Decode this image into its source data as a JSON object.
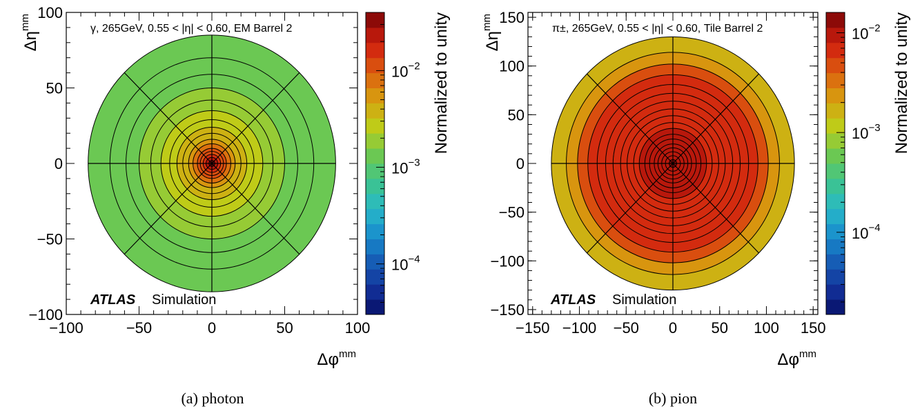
{
  "chart_data": [
    {
      "type": "heatmap",
      "subtype": "polar-binned",
      "panel_caption": "(a) photon",
      "annotation": "γ, 265GeV, 0.55 < |η| < 0.60, EM Barrel 2",
      "atlas_label": "ATLAS",
      "atlas_sublabel": "Simulation",
      "xlabel": "Δφ",
      "xlabel_sup": "mm",
      "ylabel": "Δη",
      "ylabel_sup": "mm",
      "xlim": [
        -100,
        100
      ],
      "ylim": [
        -100,
        100
      ],
      "xticks": [
        -100,
        -50,
        0,
        50,
        100
      ],
      "yticks": [
        -100,
        -50,
        0,
        50,
        100
      ],
      "xtick_labels": [
        "−100",
        "−50",
        "0",
        "50",
        "100"
      ],
      "ytick_labels": [
        "−100",
        "−50",
        "0",
        "50",
        "100"
      ],
      "colorbar": {
        "label": "Normalized to unity",
        "scale": "log",
        "range": [
          3e-05,
          0.04
        ],
        "tick_values": [
          0.0001,
          0.001,
          0.01
        ],
        "tick_labels": [
          "10",
          "10",
          "10"
        ],
        "tick_exponents": [
          "−4",
          "−3",
          "−2"
        ]
      },
      "radial_edges_mm": [
        0,
        2,
        4,
        6,
        8,
        10,
        13,
        16,
        20,
        24,
        29,
        35,
        42,
        50,
        59,
        70,
        85
      ],
      "angular_bins": 8,
      "values": [
        0.028,
        0.022,
        0.017,
        0.013,
        0.01,
        0.0075,
        0.0058,
        0.0046,
        0.0036,
        0.0029,
        0.0024,
        0.002,
        0.0017,
        0.0015,
        0.0013,
        0.0011
      ]
    },
    {
      "type": "heatmap",
      "subtype": "polar-binned",
      "panel_caption": "(b) pion",
      "annotation": "π±, 265GeV, 0.55 < |η| < 0.60, Tile Barrel 2",
      "atlas_label": "ATLAS",
      "atlas_sublabel": "Simulation",
      "xlabel": "Δφ",
      "xlabel_sup": "mm",
      "ylabel": "Δη",
      "ylabel_sup": "mm",
      "xlim": [
        -155,
        155
      ],
      "ylim": [
        -155,
        155
      ],
      "xticks": [
        -150,
        -100,
        -50,
        0,
        50,
        100,
        150
      ],
      "yticks": [
        -150,
        -100,
        -50,
        0,
        50,
        100,
        150
      ],
      "xtick_labels": [
        "−150",
        "−100",
        "−50",
        "0",
        "50",
        "100",
        "150"
      ],
      "ytick_labels": [
        "−150",
        "−100",
        "−50",
        "0",
        "50",
        "100",
        "150"
      ],
      "colorbar": {
        "label": "Normalized to unity",
        "scale": "log",
        "range": [
          1.5e-05,
          0.016
        ],
        "tick_values": [
          0.0001,
          0.001,
          0.01
        ],
        "tick_labels": [
          "10",
          "10",
          "10"
        ],
        "tick_exponents": [
          "−4",
          "−3",
          "−2"
        ]
      },
      "radial_edges_mm": [
        0,
        4,
        8,
        12,
        16,
        20,
        25,
        30,
        36,
        42,
        49,
        56,
        64,
        72,
        81,
        91,
        102,
        114,
        130
      ],
      "angular_bins": 8,
      "values": [
        0.012,
        0.011,
        0.01,
        0.0095,
        0.009,
        0.0085,
        0.0082,
        0.008,
        0.0078,
        0.0075,
        0.0072,
        0.007,
        0.0068,
        0.0065,
        0.006,
        0.0055,
        0.0022,
        0.0019
      ]
    }
  ]
}
